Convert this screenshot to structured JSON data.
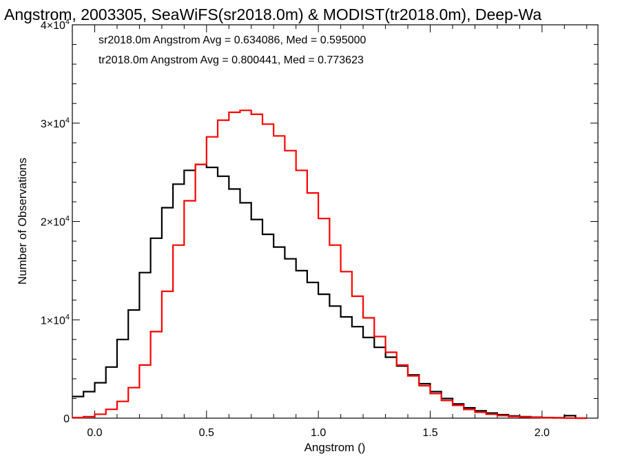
{
  "chart_data": {
    "type": "line",
    "title": "Angstrom, 2003305, SeaWiFS(sr2018.0m) & MODIST(tr2018.0m), Deep-Wa",
    "xlabel": "Angstrom ()",
    "ylabel": "Number of Observations",
    "xlim": [
      -0.1,
      2.25
    ],
    "ylim": [
      0,
      40000
    ],
    "xticks": [
      0.0,
      0.5,
      1.0,
      1.5,
      2.0
    ],
    "xtick_labels": [
      "0.0",
      "0.5",
      "1.0",
      "1.5",
      "2.0"
    ],
    "yticks": [
      0,
      10000,
      20000,
      30000,
      40000
    ],
    "ytick_labels": [
      {
        "base": "0",
        "exp": ""
      },
      {
        "base": "1×10",
        "exp": "4"
      },
      {
        "base": "2×10",
        "exp": "4"
      },
      {
        "base": "3×10",
        "exp": "4"
      },
      {
        "base": "4×10",
        "exp": "4"
      }
    ],
    "annotations": [
      {
        "text": "sr2018.0m Angstrom Avg = 0.634086, Med = 0.595000",
        "color": "#000000"
      },
      {
        "text": "tr2018.0m Angstrom Avg = 0.800441, Med = 0.773623",
        "color": "#ff0000"
      }
    ],
    "step": true,
    "series": [
      {
        "color": "#000000",
        "x": [
          -0.1,
          -0.05,
          0.0,
          0.05,
          0.1,
          0.15,
          0.2,
          0.25,
          0.3,
          0.35,
          0.4,
          0.45,
          0.5,
          0.55,
          0.6,
          0.65,
          0.7,
          0.75,
          0.8,
          0.85,
          0.9,
          0.95,
          1.0,
          1.05,
          1.1,
          1.15,
          1.2,
          1.25,
          1.3,
          1.35,
          1.4,
          1.45,
          1.5,
          1.55,
          1.6,
          1.65,
          1.7,
          1.75,
          1.8,
          1.85,
          1.9,
          1.95,
          2.0,
          2.05,
          2.1,
          2.15
        ],
        "y": [
          2200,
          2700,
          3600,
          5200,
          8000,
          11000,
          14800,
          18300,
          21400,
          23800,
          25200,
          25800,
          25500,
          24600,
          23300,
          21900,
          20200,
          18700,
          17400,
          16200,
          15000,
          13800,
          12600,
          11400,
          10300,
          9300,
          8200,
          7200,
          6200,
          5300,
          4400,
          3500,
          2700,
          2000,
          1450,
          1050,
          750,
          520,
          350,
          230,
          150,
          100,
          60,
          40,
          250,
          0
        ]
      },
      {
        "color": "#ff0000",
        "x": [
          -0.1,
          -0.05,
          0.0,
          0.05,
          0.1,
          0.15,
          0.2,
          0.25,
          0.3,
          0.35,
          0.4,
          0.45,
          0.5,
          0.55,
          0.6,
          0.65,
          0.7,
          0.75,
          0.8,
          0.85,
          0.9,
          0.95,
          1.0,
          1.05,
          1.1,
          1.15,
          1.2,
          1.25,
          1.3,
          1.35,
          1.4,
          1.45,
          1.5,
          1.55,
          1.6,
          1.65,
          1.7,
          1.75,
          1.8,
          1.85,
          1.9,
          1.95,
          2.0,
          2.05,
          2.1,
          2.15
        ],
        "y": [
          60,
          150,
          400,
          900,
          1700,
          3100,
          5400,
          8800,
          12900,
          17600,
          22100,
          25800,
          28600,
          30300,
          31100,
          31300,
          30900,
          29900,
          28700,
          27200,
          25200,
          22900,
          20300,
          17600,
          14900,
          12400,
          10200,
          8300,
          6700,
          5400,
          4300,
          3300,
          2500,
          1800,
          1300,
          880,
          600,
          400,
          260,
          170,
          110,
          70,
          40,
          25,
          10,
          0
        ]
      }
    ]
  }
}
